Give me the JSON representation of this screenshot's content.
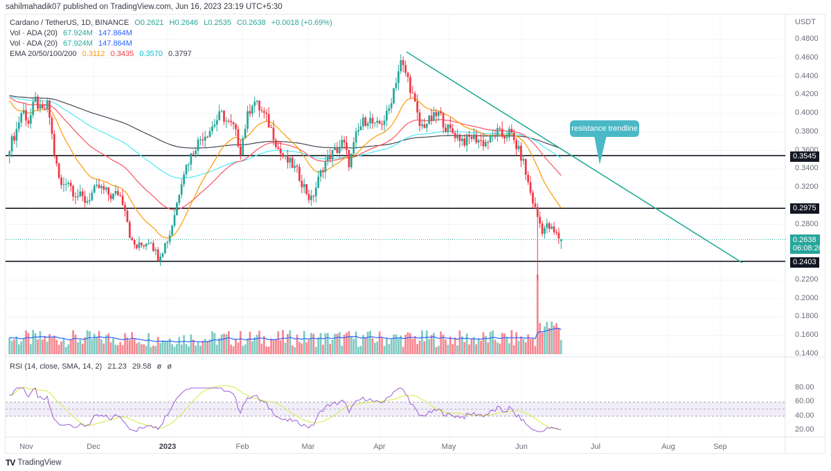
{
  "header": {
    "publisher": "sahilmahadik07 published on TradingView.com, Jun 16, 2023 23:19 UTC+5:30"
  },
  "legend": {
    "symbol": "Cardano / TetherUS, 1D, BINANCE",
    "open": "O0.2621",
    "high": "H0.2646",
    "low": "L0.2535",
    "close": "C0.2638",
    "change": "+0.0018 (+0.69%)",
    "vol1": {
      "label": "Vol · ADA (20)",
      "v1": "67.924M",
      "v2": "147.864M"
    },
    "vol2": {
      "label": "Vol · ADA (20)",
      "v1": "67.924M",
      "v2": "147.864M"
    },
    "ema": {
      "label": "EMA 20/50/100/200",
      "e20": "0.3112",
      "e50": "0.3435",
      "e100": "0.3570",
      "e200": "0.3797"
    }
  },
  "rsi_legend": {
    "label": "RSI (14, close, SMA, 14, 2)",
    "rsi": "21.23",
    "sma": "29.58",
    "u1": "ø",
    "u2": "ø"
  },
  "axis": {
    "currency": "USDT",
    "price_ticks": [
      "0.4800",
      "0.4600",
      "0.4400",
      "0.4200",
      "0.4000",
      "0.3800",
      "0.3600",
      "0.3400",
      "0.3200",
      "0.2800",
      "0.2200",
      "0.2000",
      "0.1800",
      "0.1600",
      "0.1400"
    ],
    "rsi_ticks": [
      "80.00",
      "60.00",
      "40.00",
      "20.00"
    ],
    "level_tags": [
      "0.3545",
      "0.2975",
      "0.2403"
    ],
    "last_price": "0.2638",
    "countdown": "06:08:20",
    "x_labels": [
      "Nov",
      "Dec",
      "2023",
      "Feb",
      "Mar",
      "Apr",
      "May",
      "Jun",
      "Jul",
      "Aug",
      "Sep"
    ]
  },
  "annotation": {
    "callout": "resistance trendline"
  },
  "footer": {
    "brand": "TradingView"
  },
  "colors": {
    "up": "#26a69a",
    "down": "#f23645",
    "ema20": "#ff9800",
    "ema50": "#f7525f",
    "ema100": "#4ee8f5",
    "ema200": "#434651",
    "trend": "#22ab94",
    "rsi": "#9c5bd6",
    "rsi_sma": "#d8ef5a",
    "vol_ma": "#2962ff"
  },
  "chart_data": {
    "type": "candlestick",
    "title": "Cardano / TetherUS, 1D, BINANCE",
    "ylabel": "USDT",
    "ylim": [
      0.14,
      0.49
    ],
    "x_range": [
      "2022-10-22",
      "2023-09-15"
    ],
    "horizontal_levels": [
      0.3545,
      0.2975,
      0.2403
    ],
    "trendline": {
      "from": {
        "date": "2023-04-12",
        "price": 0.465
      },
      "to": {
        "date": "2023-08-30",
        "price": 0.2403
      },
      "label": "resistance trendline"
    },
    "last": {
      "open": 0.2621,
      "high": 0.2646,
      "low": 0.2535,
      "close": 0.2638,
      "change": 0.0018,
      "change_pct": 0.69
    },
    "ema_latest": {
      "ema20": 0.3112,
      "ema50": 0.3435,
      "ema100": 0.357,
      "ema200": 0.3797
    },
    "volume_latest": {
      "vol": "67.924M",
      "vol_ma": "147.864M"
    },
    "rsi_latest": {
      "rsi": 21.23,
      "sma": 29.58,
      "bands": [
        30,
        70
      ],
      "band_display": [
        40,
        60
      ]
    },
    "monthly_close_approx": [
      {
        "month": "Nov 2022",
        "close": 0.315
      },
      {
        "month": "Dec 2022",
        "close": 0.246
      },
      {
        "month": "Jan 2023",
        "close": 0.378
      },
      {
        "month": "Feb 2023",
        "close": 0.355
      },
      {
        "month": "Mar 2023",
        "close": 0.385
      },
      {
        "month": "Apr 2023",
        "close": 0.385
      },
      {
        "month": "May 2023",
        "close": 0.365
      },
      {
        "month": "Jun 2023",
        "close": 0.2638
      }
    ],
    "close_path": [
      0.365,
      0.38,
      0.405,
      0.39,
      0.415,
      0.4,
      0.41,
      0.355,
      0.32,
      0.33,
      0.315,
      0.31,
      0.305,
      0.315,
      0.32,
      0.315,
      0.31,
      0.315,
      0.3,
      0.26,
      0.255,
      0.26,
      0.265,
      0.245,
      0.255,
      0.27,
      0.3,
      0.335,
      0.35,
      0.365,
      0.375,
      0.38,
      0.39,
      0.4,
      0.39,
      0.385,
      0.36,
      0.395,
      0.415,
      0.405,
      0.395,
      0.38,
      0.36,
      0.35,
      0.345,
      0.335,
      0.32,
      0.305,
      0.325,
      0.345,
      0.355,
      0.36,
      0.37,
      0.345,
      0.375,
      0.39,
      0.395,
      0.385,
      0.39,
      0.4,
      0.43,
      0.455,
      0.44,
      0.415,
      0.385,
      0.39,
      0.395,
      0.4,
      0.385,
      0.38,
      0.375,
      0.37,
      0.375,
      0.372,
      0.368,
      0.372,
      0.38,
      0.375,
      0.38,
      0.365,
      0.35,
      0.32,
      0.295,
      0.275,
      0.278,
      0.27,
      0.2638
    ]
  }
}
